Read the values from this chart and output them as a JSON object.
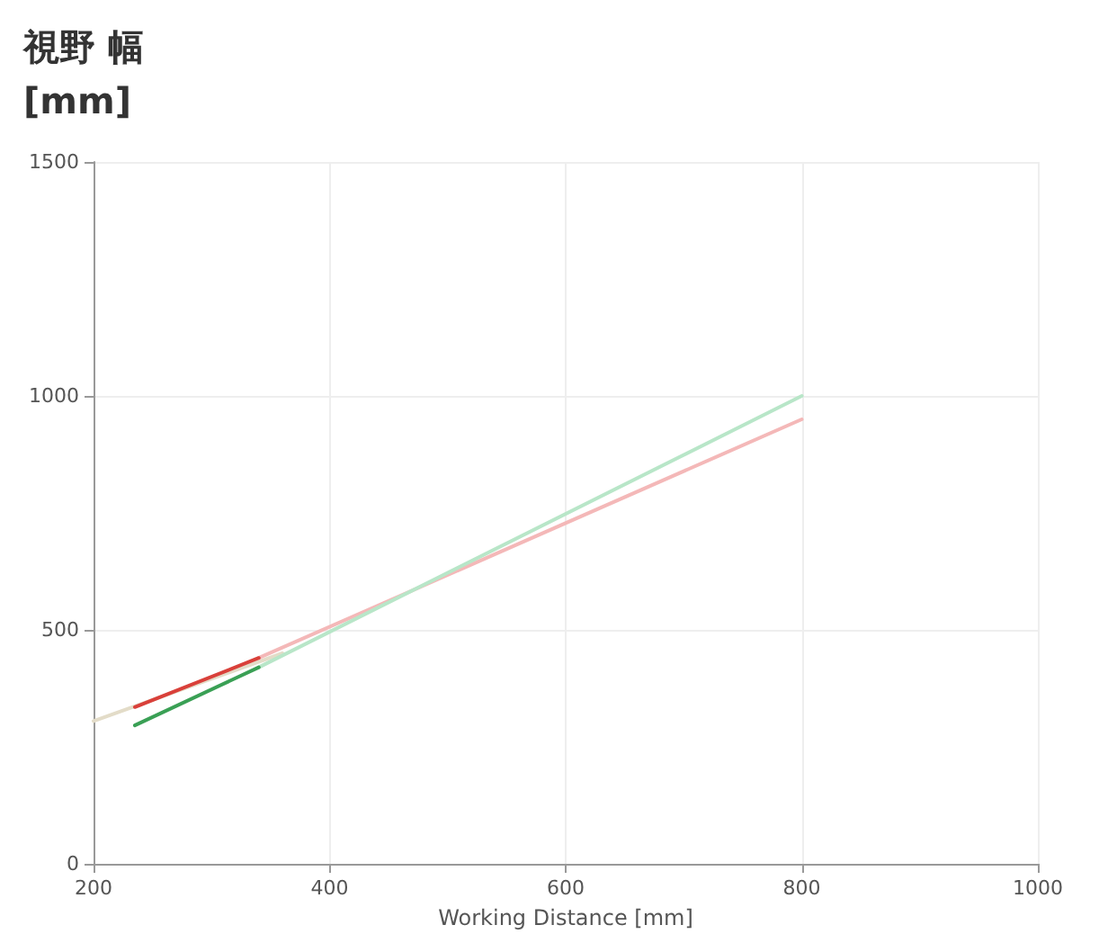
{
  "chart_data": {
    "type": "line",
    "ylabel": "視野 幅\n[mm]",
    "xlabel": "Working Distance [mm]",
    "xlim": [
      200,
      1000
    ],
    "xticks": [
      200,
      400,
      600,
      800,
      1000
    ],
    "ylim": [
      0,
      1500
    ],
    "yticks": [
      0,
      500,
      1000,
      1500
    ],
    "grid": true,
    "marker": "none",
    "line_style": "solid",
    "series": [
      {
        "color": "#e3dcc8",
        "x": [
          200,
          360
        ],
        "values": [
          305,
          450
        ]
      },
      {
        "color": "#f4b8b8",
        "x": [
          340,
          800
        ],
        "values": [
          440,
          950
        ]
      },
      {
        "color": "#b8e6c8",
        "x": [
          340,
          800
        ],
        "values": [
          420,
          1000
        ]
      },
      {
        "color": "#d9403a",
        "x": [
          235,
          340
        ],
        "values": [
          335,
          440
        ]
      },
      {
        "color": "#3aa055",
        "x": [
          235,
          340
        ],
        "values": [
          296,
          420
        ]
      }
    ]
  }
}
